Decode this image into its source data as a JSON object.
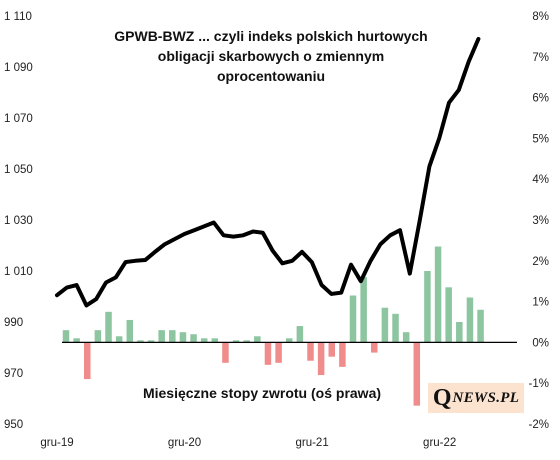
{
  "chart_data": {
    "type": "line+bar",
    "title_lines": [
      "GPWB-BWZ ... czyli indeks polskich hurtowych",
      "obligacji skarbowych o zmiennym",
      "oprocentowaniu"
    ],
    "annotation": "Miesięczne stopy zwrotu (oś prawa)",
    "watermark": {
      "q": "Q",
      "rest": "NEWS.PL"
    },
    "x_ticks": [
      "gru-19",
      "gru-20",
      "gru-21",
      "gru-22"
    ],
    "left_axis": {
      "ylim": [
        950,
        1110
      ],
      "ticks": [
        950,
        970,
        990,
        1010,
        1030,
        1050,
        1070,
        1090,
        1110
      ],
      "tick_labels": [
        "950",
        "970",
        "990",
        "1 010",
        "1 030",
        "1 050",
        "1 070",
        "1 090",
        "1 110"
      ]
    },
    "right_axis": {
      "ylim": [
        -2,
        8
      ],
      "ticks": [
        -2,
        -1,
        0,
        1,
        2,
        3,
        4,
        5,
        6,
        7,
        8
      ],
      "tick_labels": [
        "-2%",
        "-1%",
        "0%",
        "1%",
        "2%",
        "3%",
        "4%",
        "5%",
        "6%",
        "7%",
        "8%"
      ]
    },
    "index_series": {
      "axis": "left",
      "color": "#000000",
      "values": [
        1000.5,
        1003.5,
        1004.5,
        996.5,
        999,
        1005.5,
        1007.5,
        1013.5,
        1014,
        1014.3,
        1017.5,
        1020.5,
        1022.5,
        1024.5,
        1026,
        1027.5,
        1029,
        1024,
        1023.5,
        1024,
        1025.5,
        1025,
        1018,
        1013,
        1014,
        1017.5,
        1013.5,
        1004.5,
        1001,
        1001.5,
        1012.5,
        1006,
        1014,
        1020.5,
        1024,
        1026,
        1009,
        1029.5,
        1051,
        1062,
        1076,
        1081,
        1092,
        1101
      ]
    },
    "monthly_returns": {
      "axis": "right",
      "unit": "%",
      "positive_color": "#8cc5a0",
      "negative_color": "#f08c8c",
      "values": [
        0.3,
        0.1,
        -0.9,
        0.3,
        0.75,
        0.15,
        0.55,
        0.05,
        0.05,
        0.3,
        0.3,
        0.25,
        0.2,
        0.1,
        0.1,
        -0.5,
        0.05,
        0.05,
        0.15,
        -0.55,
        -0.5,
        0.1,
        0.4,
        -0.45,
        -0.8,
        -0.35,
        -0.6,
        1.15,
        1.6,
        -0.25,
        0.85,
        0.7,
        0.25,
        -1.55,
        1.75,
        2.35,
        1.35,
        0.5,
        1.1,
        0.8
      ]
    }
  }
}
